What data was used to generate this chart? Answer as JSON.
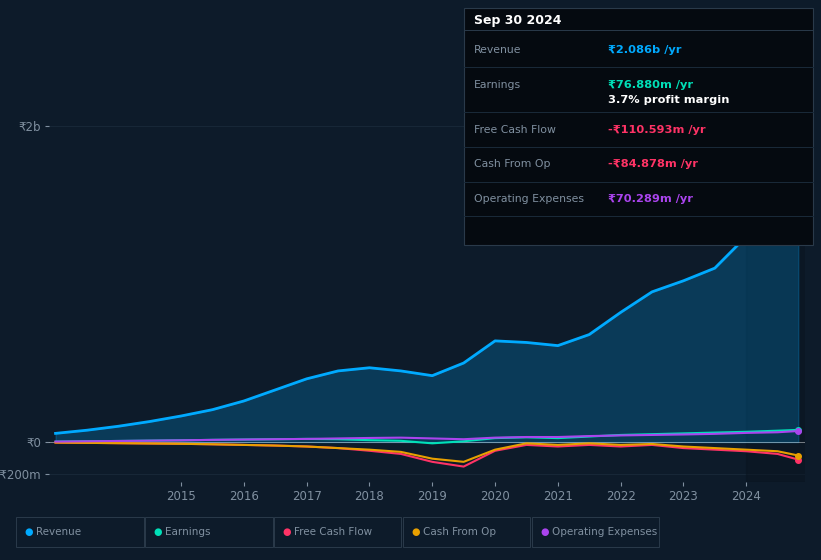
{
  "bg_color": "#0d1b2a",
  "plot_bg_color": "#0d1b2a",
  "grid_color": "#1a2a3a",
  "text_color": "#8090a0",
  "title_color": "#ffffff",
  "years": [
    2013.0,
    2013.5,
    2014.0,
    2014.5,
    2015.0,
    2015.5,
    2016.0,
    2016.5,
    2017.0,
    2017.5,
    2018.0,
    2018.5,
    2019.0,
    2019.5,
    2020.0,
    2020.5,
    2021.0,
    2021.5,
    2022.0,
    2022.5,
    2023.0,
    2023.5,
    2024.0,
    2024.5,
    2024.83
  ],
  "revenue": [
    55,
    75,
    100,
    130,
    165,
    205,
    260,
    330,
    400,
    450,
    470,
    450,
    420,
    500,
    640,
    630,
    610,
    680,
    820,
    950,
    1020,
    1100,
    1300,
    1800,
    2086
  ],
  "earnings": [
    3,
    5,
    7,
    9,
    11,
    14,
    16,
    18,
    20,
    18,
    12,
    8,
    -8,
    5,
    25,
    30,
    25,
    35,
    45,
    50,
    55,
    60,
    65,
    72,
    77
  ],
  "fcf": [
    -3,
    -5,
    -7,
    -9,
    -11,
    -14,
    -18,
    -22,
    -28,
    -38,
    -55,
    -75,
    -125,
    -155,
    -55,
    -18,
    -28,
    -18,
    -28,
    -18,
    -38,
    -48,
    -58,
    -75,
    -111
  ],
  "cashfromop": [
    -3,
    -5,
    -7,
    -9,
    -11,
    -14,
    -18,
    -22,
    -28,
    -38,
    -48,
    -62,
    -105,
    -125,
    -48,
    -8,
    -18,
    -8,
    -18,
    -12,
    -28,
    -38,
    -48,
    -58,
    -85
  ],
  "opex": [
    3,
    5,
    7,
    9,
    11,
    14,
    16,
    18,
    20,
    23,
    26,
    28,
    23,
    18,
    28,
    32,
    32,
    38,
    42,
    45,
    48,
    52,
    58,
    62,
    70
  ],
  "revenue_color": "#00aaff",
  "earnings_color": "#00e0b8",
  "fcf_color": "#ff3366",
  "cashfromop_color": "#e8a000",
  "opex_color": "#aa44ee",
  "revenue_fill_alpha": 0.22,
  "ylim_min": -250,
  "ylim_max": 2300,
  "ytick_positions": [
    -200,
    0,
    2000
  ],
  "ytick_labels": [
    "-₹200m",
    "₹0",
    "₹2b"
  ],
  "xtick_positions": [
    2015,
    2016,
    2017,
    2018,
    2019,
    2020,
    2021,
    2022,
    2023,
    2024
  ],
  "shade_start": 2024.0,
  "infobox": {
    "title": "Sep 30 2024",
    "rows": [
      {
        "label": "Revenue",
        "value": "₹2.086b /yr",
        "value_color": "#00aaff",
        "extra": null
      },
      {
        "label": "Earnings",
        "value": "₹76.880m /yr",
        "value_color": "#00e0b8",
        "extra": "3.7% profit margin"
      },
      {
        "label": "Free Cash Flow",
        "value": "-₹110.593m /yr",
        "value_color": "#ff3366",
        "extra": null
      },
      {
        "label": "Cash From Op",
        "value": "-₹84.878m /yr",
        "value_color": "#ff3366",
        "extra": null
      },
      {
        "label": "Operating Expenses",
        "value": "₹70.289m /yr",
        "value_color": "#aa44ee",
        "extra": null
      }
    ]
  },
  "legend_items": [
    {
      "label": "Revenue",
      "color": "#00aaff"
    },
    {
      "label": "Earnings",
      "color": "#00e0b8"
    },
    {
      "label": "Free Cash Flow",
      "color": "#ff3366"
    },
    {
      "label": "Cash From Op",
      "color": "#e8a000"
    },
    {
      "label": "Operating Expenses",
      "color": "#aa44ee"
    }
  ]
}
